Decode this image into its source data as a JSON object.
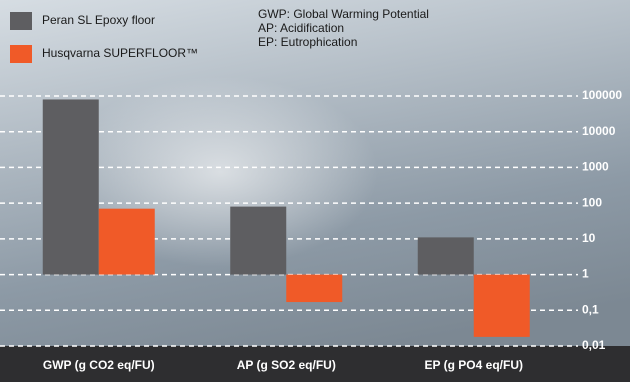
{
  "chart_data": {
    "type": "bar",
    "categories": [
      "GWP (g CO2 eq/FU)",
      "AP (g SO2 eq/FU)",
      "EP (g PO4 eq/FU)"
    ],
    "series": [
      {
        "name": "Peran SL Epoxy floor",
        "color": "#5e5e61",
        "values": [
          80000,
          80,
          11
        ]
      },
      {
        "name": "Husqvarna SUPERFLOOR™",
        "color": "#f05a28",
        "values": [
          70,
          0.17,
          0.018
        ]
      }
    ],
    "ylim": [
      0.01,
      100000
    ],
    "yticks": [
      {
        "value": 0.01,
        "label": "0,01"
      },
      {
        "value": 0.1,
        "label": "0,1"
      },
      1,
      10,
      100,
      1000,
      10000,
      100000
    ],
    "y_scale": "log",
    "grid": true,
    "annotations": [
      "GWP: Global Warming Potential",
      "AP: Acidification",
      "EP: Eutrophication"
    ]
  }
}
